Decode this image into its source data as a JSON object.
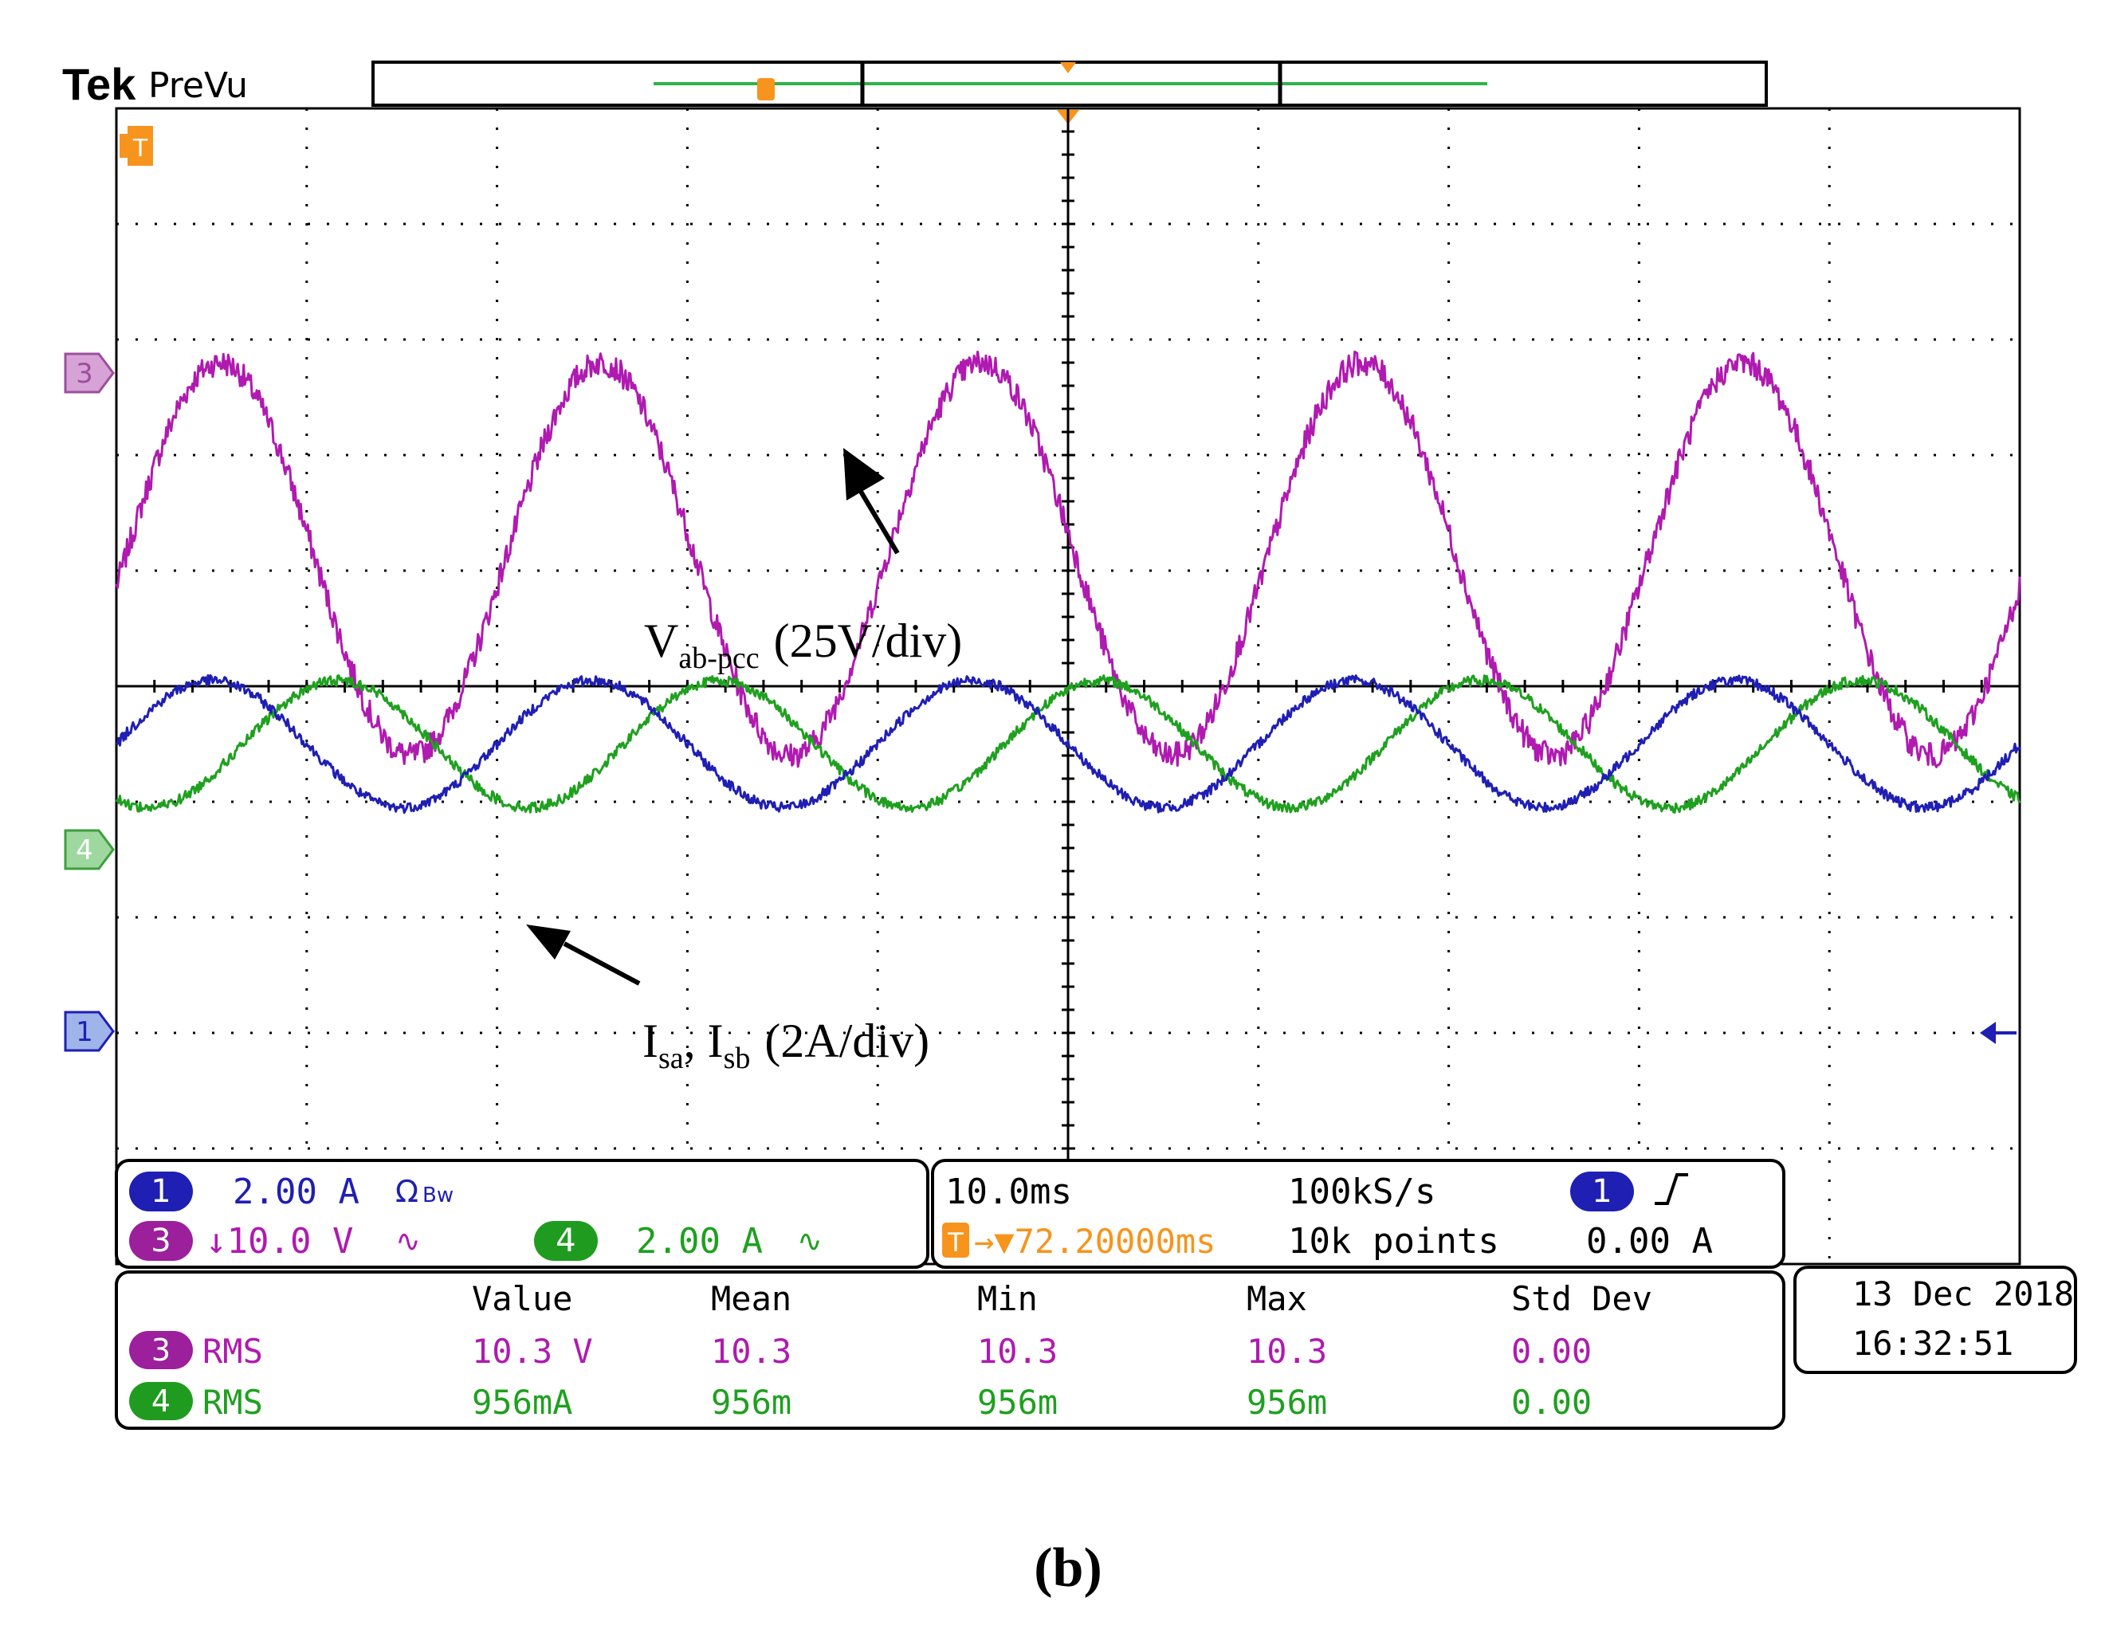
{
  "header": {
    "brand": "Tek",
    "mode": "PreVu"
  },
  "markers": {
    "trigger": "T",
    "ch3": "3",
    "ch4": "4",
    "ch1": "1"
  },
  "annotations": {
    "voltage_main": "V",
    "voltage_sub": "ab-pcc",
    "voltage_scale": "(25V/div)",
    "current_a": "I",
    "current_a_sub": "sa",
    "current_sep": ", ",
    "current_b": "I",
    "current_b_sub": "sb",
    "current_scale": "(2A/div)"
  },
  "settings": {
    "ch1_num": "1",
    "ch1_scale": "2.00 A",
    "ch1_extra": "Ω",
    "ch3_num": "3",
    "ch3_scale": "↓10.0 V",
    "ch4_num": "4",
    "ch4_scale": "2.00 A",
    "timebase": "10.0ms",
    "sample_rate": "100kS/s",
    "trigger_label": "T",
    "trigger_pos": "→▼72.20000ms",
    "record_length": "10k points",
    "trig_ch": "1",
    "trig_level": "0.00 A"
  },
  "measurements": {
    "headers": [
      "Value",
      "Mean",
      "Min",
      "Max",
      "Std Dev"
    ],
    "rows": [
      {
        "ch": "3",
        "type": "RMS",
        "values": [
          "10.3 V",
          "10.3",
          "10.3",
          "10.3",
          "0.00"
        ]
      },
      {
        "ch": "4",
        "type": "RMS",
        "values": [
          "956mA",
          "956m",
          "956m",
          "956m",
          "0.00"
        ]
      }
    ]
  },
  "datetime": {
    "date": "13 Dec  2018",
    "time": "16:32:51"
  },
  "caption": "(b)",
  "colors": {
    "ch3": "#b01ab0",
    "ch1": "#1f1fb4",
    "ch4": "#1fa01f",
    "trigger": "#f7941d",
    "grid": "#000000"
  },
  "chart_data": {
    "type": "line",
    "title": "",
    "x_unit": "ms",
    "x_per_div": 10,
    "x_divisions": 10,
    "y_divisions": 10,
    "grid": true,
    "series": [
      {
        "name": "V ab-pcc",
        "channel": "3",
        "scale_per_div": "25V/div",
        "frequency_hz": 50,
        "amplitude_div": 1.7,
        "offset_div": 1.1,
        "phase_deg": -8
      },
      {
        "name": "I sa",
        "channel": "1",
        "scale_per_div": "2A/div",
        "frequency_hz": 50,
        "amplitude_div": 0.55,
        "offset_div": -0.5,
        "phase_deg": 0
      },
      {
        "name": "I sb",
        "channel": "4",
        "scale_per_div": "2A/div",
        "frequency_hz": 50,
        "amplitude_div": 0.55,
        "offset_div": -0.5,
        "phase_deg": -120
      }
    ]
  }
}
